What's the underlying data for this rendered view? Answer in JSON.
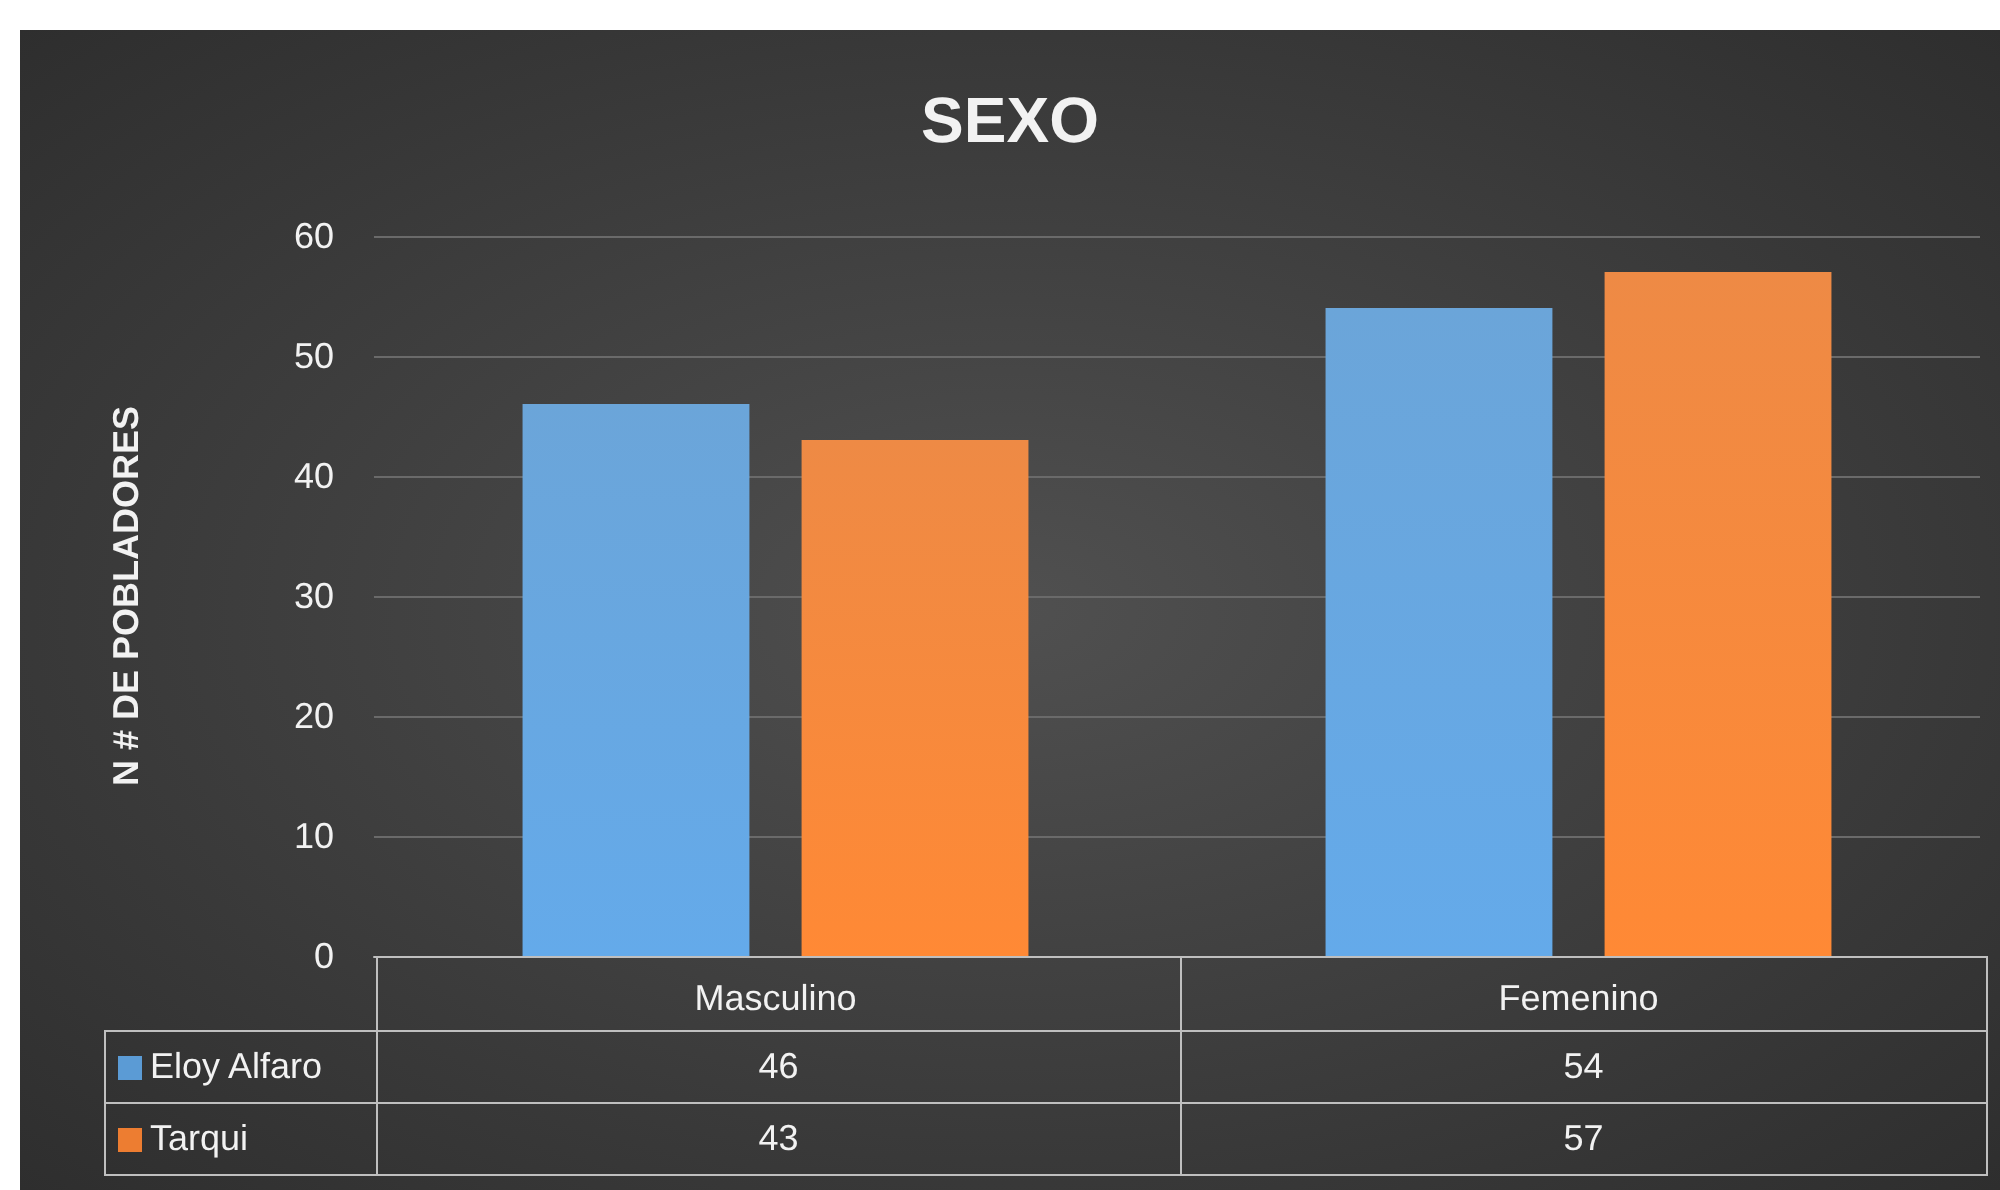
{
  "chart_data": {
    "type": "bar",
    "title": "SEXO",
    "ylabel": "N # DE POBLADORES",
    "categories": [
      "Masculino",
      "Femenino"
    ],
    "series": [
      {
        "name": "Eloy Alfaro",
        "color": "#5b9bd5",
        "values": [
          46,
          54
        ]
      },
      {
        "name": "Tarqui",
        "color": "#ed7d31",
        "values": [
          43,
          57
        ]
      }
    ],
    "ylim": [
      0,
      60
    ],
    "yticks": [
      0,
      10,
      20,
      30,
      40,
      50,
      60
    ],
    "grid": "y",
    "legend": "bottom",
    "data_labels": true
  }
}
